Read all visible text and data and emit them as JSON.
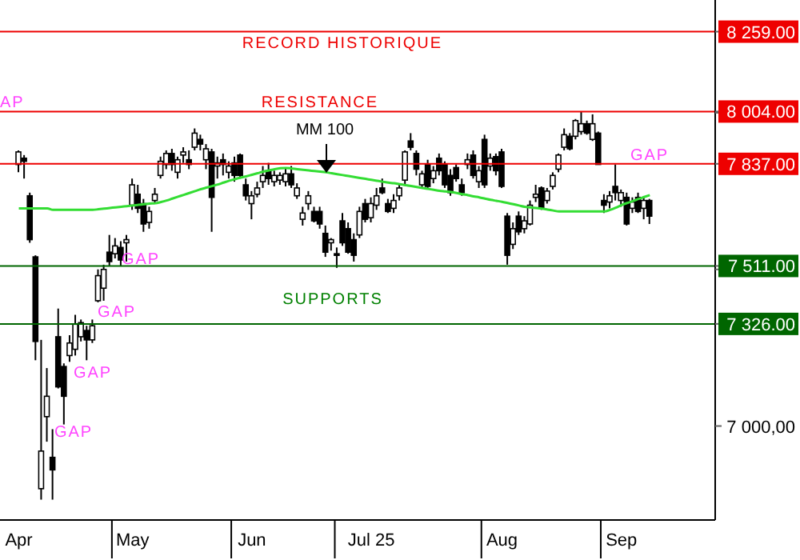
{
  "chart_data": {
    "type": "candlestick",
    "categories": [
      "Apr",
      null,
      null,
      null,
      null,
      null,
      null,
      null,
      null,
      null,
      null,
      null,
      null,
      null,
      null,
      null,
      null,
      null,
      null,
      null,
      "May",
      null,
      null,
      null,
      null,
      null,
      null,
      null,
      null,
      null,
      null,
      null,
      null,
      null,
      null,
      null,
      null,
      null,
      null,
      null,
      null,
      "Jun",
      null,
      null,
      null,
      null,
      null,
      null,
      null,
      null,
      null,
      null,
      null,
      null,
      null,
      null,
      null,
      null,
      null,
      null,
      null,
      null,
      "Jul 25",
      null,
      null,
      null,
      null,
      null,
      null,
      null,
      null,
      null,
      null,
      null,
      null,
      null,
      null,
      null,
      null,
      null,
      null,
      null,
      null,
      null,
      null,
      "Aug",
      null,
      null,
      null,
      null,
      null,
      null,
      null,
      null,
      null,
      null,
      null,
      null,
      null,
      null,
      null,
      null,
      null,
      null,
      null,
      null,
      "Sep",
      null,
      null,
      null,
      null,
      null,
      null,
      null,
      null,
      null,
      null,
      null,
      null,
      null,
      null,
      null,
      null
    ],
    "ohlc": [
      [
        7835,
        7880,
        7810,
        7875
      ],
      [
        7855,
        7865,
        7790,
        7845
      ],
      [
        7735,
        7745,
        7585,
        7595
      ],
      [
        7540,
        7545,
        7210,
        7270
      ],
      [
        6800,
        7275,
        6765,
        6920
      ],
      [
        7030,
        7185,
        6950,
        7095
      ],
      [
        6900,
        6990,
        6765,
        6860
      ],
      [
        7285,
        7375,
        7120,
        7125
      ],
      [
        7190,
        7200,
        7005,
        7095
      ],
      [
        7225,
        7290,
        7205,
        7265
      ],
      [
        7245,
        7355,
        7225,
        7325
      ],
      [
        7285,
        7340,
        7270,
        7330
      ],
      [
        7305,
        7320,
        7210,
        7275
      ],
      [
        7275,
        7340,
        7265,
        7320
      ],
      [
        7400,
        7500,
        7395,
        7480
      ],
      [
        7440,
        7515,
        7400,
        7500
      ],
      [
        7555,
        7610,
        7510,
        7525
      ],
      [
        7550,
        7600,
        7535,
        7575
      ],
      [
        7570,
        7590,
        7510,
        7530
      ],
      [
        7585,
        7610,
        7525,
        7595
      ],
      [
        7705,
        7790,
        7690,
        7770
      ],
      [
        7740,
        7770,
        7680,
        7695
      ],
      [
        7710,
        7725,
        7620,
        7645
      ],
      [
        7650,
        7700,
        7630,
        7685
      ],
      [
        7720,
        7760,
        7710,
        7740
      ],
      [
        7800,
        7860,
        7790,
        7845
      ],
      [
        7835,
        7880,
        7820,
        7870
      ],
      [
        7870,
        7885,
        7815,
        7835
      ],
      [
        7810,
        7860,
        7790,
        7850
      ],
      [
        7865,
        7890,
        7840,
        7875
      ],
      [
        7850,
        7880,
        7820,
        7835
      ],
      [
        7890,
        7950,
        7880,
        7935
      ],
      [
        7915,
        7930,
        7880,
        7900
      ],
      [
        7850,
        7900,
        7820,
        7885
      ],
      [
        7875,
        7885,
        7620,
        7730
      ],
      [
        7830,
        7860,
        7790,
        7840
      ],
      [
        7850,
        7870,
        7800,
        7835
      ],
      [
        7810,
        7845,
        7790,
        7830
      ],
      [
        7840,
        7860,
        7780,
        7800
      ],
      [
        7865,
        7870,
        7790,
        7800
      ],
      [
        7770,
        7790,
        7720,
        7735
      ],
      [
        7710,
        7750,
        7660,
        7735
      ],
      [
        7740,
        7780,
        7730,
        7760
      ],
      [
        7780,
        7830,
        7760,
        7800
      ],
      [
        7815,
        7840,
        7770,
        7790
      ],
      [
        7780,
        7815,
        7765,
        7800
      ],
      [
        7785,
        7810,
        7770,
        7800
      ],
      [
        7780,
        7825,
        7765,
        7805
      ],
      [
        7805,
        7830,
        7760,
        7770
      ],
      [
        7735,
        7775,
        7725,
        7760
      ],
      [
        7660,
        7700,
        7640,
        7680
      ],
      [
        7710,
        7750,
        7690,
        7735
      ],
      [
        7685,
        7700,
        7650,
        7655
      ],
      [
        7685,
        7700,
        7630,
        7645
      ],
      [
        7615,
        7640,
        7540,
        7555
      ],
      [
        7585,
        7600,
        7560,
        7595
      ],
      [
        7550,
        7570,
        7505,
        7545
      ],
      [
        7655,
        7680,
        7575,
        7585
      ],
      [
        7630,
        7650,
        7550,
        7555
      ],
      [
        7595,
        7615,
        7525,
        7545
      ],
      [
        7610,
        7700,
        7600,
        7685
      ],
      [
        7710,
        7725,
        7650,
        7660
      ],
      [
        7665,
        7730,
        7650,
        7710
      ],
      [
        7705,
        7760,
        7690,
        7735
      ],
      [
        7760,
        7790,
        7740,
        7745
      ],
      [
        7710,
        7725,
        7680,
        7685
      ],
      [
        7695,
        7740,
        7680,
        7720
      ],
      [
        7735,
        7775,
        7720,
        7760
      ],
      [
        7785,
        7880,
        7770,
        7875
      ],
      [
        7910,
        7935,
        7880,
        7890
      ],
      [
        7870,
        7880,
        7800,
        7820
      ],
      [
        7770,
        7815,
        7760,
        7805
      ],
      [
        7835,
        7850,
        7760,
        7765
      ],
      [
        7790,
        7830,
        7775,
        7815
      ],
      [
        7855,
        7870,
        7800,
        7815
      ],
      [
        7835,
        7845,
        7760,
        7770
      ],
      [
        7800,
        7820,
        7735,
        7745
      ],
      [
        7825,
        7835,
        7780,
        7790
      ],
      [
        7770,
        7790,
        7735,
        7745
      ],
      [
        7835,
        7870,
        7820,
        7850
      ],
      [
        7865,
        7880,
        7790,
        7800
      ],
      [
        7780,
        7830,
        7760,
        7815
      ],
      [
        7915,
        7930,
        7760,
        7770
      ],
      [
        7830,
        7870,
        7815,
        7855
      ],
      [
        7860,
        7870,
        7800,
        7815
      ],
      [
        7875,
        7885,
        7760,
        7765
      ],
      [
        7670,
        7680,
        7515,
        7545
      ],
      [
        7580,
        7650,
        7565,
        7630
      ],
      [
        7670,
        7685,
        7610,
        7620
      ],
      [
        7630,
        7670,
        7615,
        7655
      ],
      [
        7645,
        7720,
        7640,
        7705
      ],
      [
        7730,
        7770,
        7715,
        7740
      ],
      [
        7760,
        7765,
        7690,
        7695
      ],
      [
        7720,
        7760,
        7710,
        7750
      ],
      [
        7765,
        7810,
        7755,
        7800
      ],
      [
        7820,
        7870,
        7810,
        7865
      ],
      [
        7890,
        7950,
        7880,
        7930
      ],
      [
        7925,
        7935,
        7880,
        7885
      ],
      [
        7925,
        7980,
        7915,
        7975
      ],
      [
        7940,
        8005,
        7930,
        7965
      ],
      [
        7965,
        7975,
        7930,
        7935
      ],
      [
        7915,
        7995,
        7910,
        7965
      ],
      [
        7935,
        7940,
        7835,
        7835
      ],
      [
        7720,
        7740,
        7680,
        7705
      ],
      [
        7715,
        7750,
        7695,
        7735
      ],
      [
        7765,
        7835,
        7720,
        7745
      ],
      [
        7720,
        7755,
        7700,
        7745
      ],
      [
        7730,
        7745,
        7640,
        7645
      ],
      [
        7695,
        7730,
        7680,
        7715
      ],
      [
        7730,
        7745,
        7680,
        7685
      ],
      [
        7695,
        7730,
        7660,
        7720
      ],
      [
        7720,
        7725,
        7645,
        7670
      ],
      null,
      null,
      null,
      null,
      null,
      null,
      null,
      null,
      null,
      null,
      null
    ],
    "series": [
      {
        "name": "MM 100",
        "type": "line",
        "color": "#33dd33",
        "values": [
          7695,
          7695,
          7695,
          7695,
          7695,
          7695,
          7690,
          7690,
          7690,
          7690,
          7690,
          7690,
          7690,
          7690,
          7692,
          7694,
          7696,
          7698,
          7700,
          7702,
          7704,
          7706,
          7708,
          7710,
          7711,
          7715,
          7720,
          7726,
          7732,
          7738,
          7744,
          7750,
          7756,
          7761,
          7766,
          7771,
          7777,
          7783,
          7788,
          7793,
          7797,
          7802,
          7807,
          7812,
          7816,
          7820,
          7823,
          7824,
          7822,
          7820,
          7818,
          7816,
          7814,
          7812,
          7810,
          7807,
          7804,
          7801,
          7798,
          7795,
          7792,
          7789,
          7786,
          7783,
          7780,
          7777,
          7775,
          7772,
          7769,
          7766,
          7763,
          7760,
          7757,
          7754,
          7751,
          7749,
          7747,
          7744,
          7740,
          7737,
          7733,
          7730,
          7726,
          7722,
          7719,
          7716,
          7712,
          7708,
          7704,
          7700,
          7698,
          7696,
          7694,
          7691,
          7688,
          7685,
          7685,
          7685,
          7685,
          7685,
          7685,
          7685,
          7685,
          7685,
          7690,
          7697,
          7705,
          7712,
          7718,
          7725,
          7731,
          7737,
          null,
          null,
          null,
          null,
          null,
          null,
          null,
          null,
          null,
          null,
          null
        ]
      }
    ],
    "ylim": [
      6700,
      8360
    ],
    "yticks": [
      {
        "value": 7000,
        "label": "7 000,00"
      },
      {
        "value": 7326,
        "label": "7 326.00"
      },
      {
        "value": 7500,
        "label": null
      },
      {
        "value": 7511,
        "label": "7 511.00"
      },
      {
        "value": 7837,
        "label": "7 837.00"
      },
      {
        "value": 8000,
        "label": null
      },
      {
        "value": 8004,
        "label": "8 004.00"
      },
      {
        "value": 8259,
        "label": "8 259.00"
      }
    ],
    "ref_lines": [
      {
        "axis": "y",
        "value": 8259,
        "color": "#ee0000"
      },
      {
        "axis": "y",
        "value": 8004,
        "color": "#ee0000"
      },
      {
        "axis": "y",
        "value": 7837,
        "color": "#ee0000"
      },
      {
        "axis": "y",
        "value": 7511,
        "color": "#006600"
      },
      {
        "axis": "y",
        "value": 7326,
        "color": "#006600"
      }
    ],
    "annotations": [
      "RECORD HISTORIQUE",
      "RESISTANCE",
      "SUPPORTS",
      "AP",
      "GAP",
      "GAP",
      "GAP",
      "GAP",
      "GAP"
    ]
  }
}
